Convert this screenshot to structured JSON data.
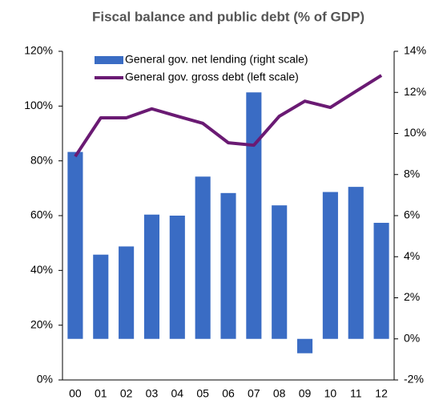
{
  "chart_data": {
    "type": "bar_line",
    "title": "Fiscal balance and public debt (% of GDP)",
    "categories": [
      "00",
      "01",
      "02",
      "03",
      "04",
      "05",
      "06",
      "07",
      "08",
      "09",
      "10",
      "11",
      "12"
    ],
    "series": [
      {
        "name": "General gov. net lending (right scale)",
        "type": "bar",
        "axis": "y2",
        "color": "#3a6cc4",
        "values": [
          9.1,
          4.1,
          4.5,
          6.05,
          6.0,
          7.9,
          7.1,
          12.0,
          6.5,
          -0.7,
          7.15,
          7.4,
          5.65
        ]
      },
      {
        "name": "General gov. gross debt (left scale)",
        "type": "line",
        "color": "#6a1a73",
        "values": [
          81.6,
          95.7,
          95.7,
          99.0,
          96.3,
          93.7,
          86.6,
          85.7,
          96.3,
          101.8,
          99.5,
          105.4,
          111.2
        ]
      }
    ],
    "ylim": [
      0,
      120
    ],
    "yticks": [
      {
        "value": 0,
        "label": "0%"
      },
      {
        "value": 20,
        "label": "20%"
      },
      {
        "value": 40,
        "label": "40%"
      },
      {
        "value": 60,
        "label": "60%"
      },
      {
        "value": 80,
        "label": "80%"
      },
      {
        "value": 100,
        "label": "100%"
      },
      {
        "value": 120,
        "label": "120%"
      }
    ],
    "y2lim": [
      -2,
      14
    ],
    "y2ticks": [
      {
        "value": -2,
        "label": "-2%"
      },
      {
        "value": 0,
        "label": "0%"
      },
      {
        "value": 2,
        "label": "2%"
      },
      {
        "value": 4,
        "label": "4%"
      },
      {
        "value": 6,
        "label": "6%"
      },
      {
        "value": 8,
        "label": "8%"
      },
      {
        "value": 10,
        "label": "10%"
      },
      {
        "value": 12,
        "label": "12%"
      },
      {
        "value": 14,
        "label": "14%"
      }
    ],
    "legend": "top"
  }
}
